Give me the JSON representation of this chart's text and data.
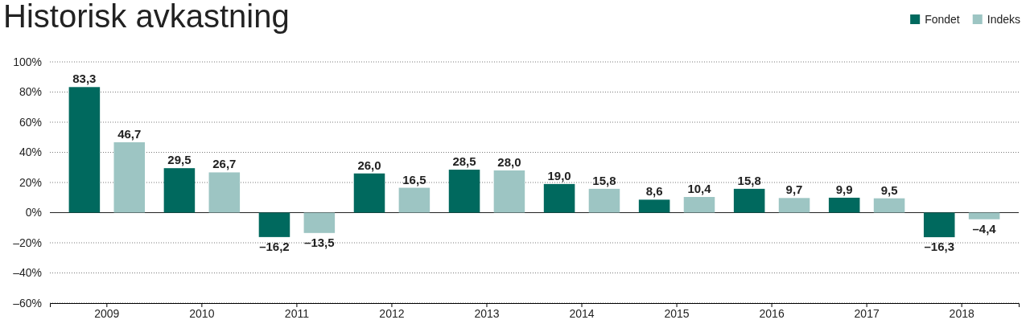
{
  "chart_data": {
    "type": "bar",
    "title": "Historisk avkastning",
    "categories": [
      "2009",
      "2010",
      "2011",
      "2012",
      "2013",
      "2014",
      "2015",
      "2016",
      "2017",
      "2018"
    ],
    "series": [
      {
        "name": "Fondet",
        "color": "#00695e",
        "values": [
          83.3,
          29.5,
          -16.2,
          26.0,
          28.5,
          19.0,
          8.6,
          15.8,
          9.9,
          -16.3
        ],
        "value_labels": [
          "83,3",
          "29,5",
          "–16,2",
          "26,0",
          "28,5",
          "19,0",
          "8,6",
          "15,8",
          "9,9",
          "–16,3"
        ]
      },
      {
        "name": "Indeks",
        "color": "#9dc5c3",
        "values": [
          46.7,
          26.7,
          -13.5,
          16.5,
          28.0,
          15.8,
          10.4,
          9.7,
          9.5,
          -4.4
        ],
        "value_labels": [
          "46,7",
          "26,7",
          "–13,5",
          "16,5",
          "28,0",
          "15,8",
          "10,4",
          "9,7",
          "9,5",
          "–4,4"
        ]
      }
    ],
    "ylim": [
      -60,
      100
    ],
    "yticks": [
      {
        "value": -60,
        "label": "–60%"
      },
      {
        "value": -40,
        "label": "–40%"
      },
      {
        "value": -20,
        "label": "–20%"
      },
      {
        "value": 0,
        "label": "0%"
      },
      {
        "value": 20,
        "label": "20%"
      },
      {
        "value": 40,
        "label": "40%"
      },
      {
        "value": 60,
        "label": "60%"
      },
      {
        "value": 80,
        "label": "80%"
      },
      {
        "value": 100,
        "label": "100%"
      }
    ],
    "grid": "y",
    "legend": "top right"
  }
}
